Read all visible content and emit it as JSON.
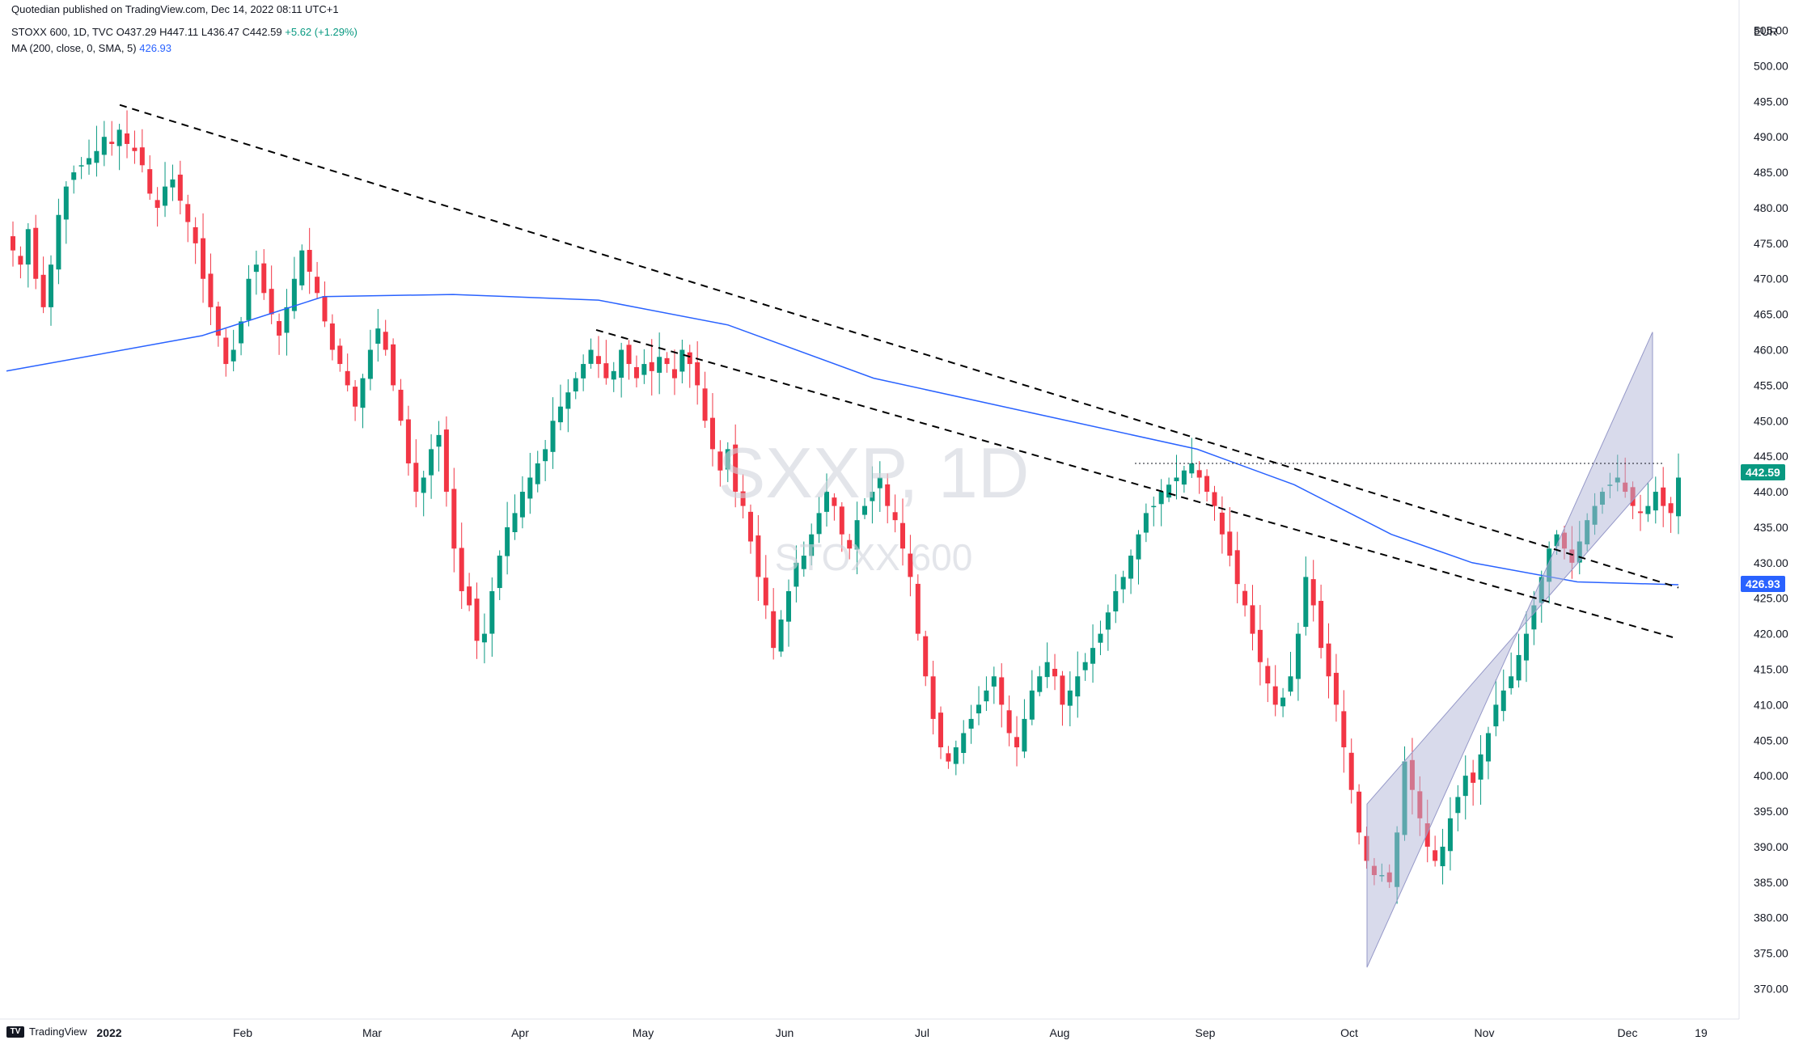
{
  "header": {
    "published": "Quotedian published on TradingView.com, Dec 14, 2022 08:11 UTC+1",
    "ohlc_prefix": "STOXX 600, 1D, TVC",
    "ohlc_values": "O437.29 H447.11 L436.47 C442.59",
    "change": "+5.62 (+1.29%)",
    "indicator": "MA (200, close, 0, SMA, 5)",
    "indicator_value": "426.93"
  },
  "watermark": {
    "symbol": "SXXP, 1D",
    "name": "STOXX 600"
  },
  "footer": {
    "logo_text": "TradingView"
  },
  "colors": {
    "up": "#089981",
    "down": "#f23645",
    "ma": "#2962ff",
    "channel": "#b2b5d8",
    "current_label": "#089981",
    "ma_label": "#2962ff"
  },
  "chart_data": {
    "type": "candlestick",
    "currency": "EUR",
    "y_ticks": [
      370,
      375,
      380,
      385,
      390,
      395,
      400,
      405,
      410,
      415,
      420,
      425,
      430,
      435,
      440,
      445,
      450,
      455,
      460,
      465,
      470,
      475,
      480,
      485,
      490,
      495,
      500,
      505
    ],
    "ylim": [
      368,
      507
    ],
    "x_ticks": [
      "2022",
      "Feb",
      "Mar",
      "Apr",
      "May",
      "Jun",
      "Jul",
      "Aug",
      "Sep",
      "Oct",
      "Nov",
      "Dec",
      "19"
    ],
    "last_close": "442.59",
    "ma_last": "426.93",
    "close_series": [
      474,
      472,
      477,
      470,
      466,
      472,
      479,
      483,
      485,
      486,
      487,
      488,
      490,
      489,
      491,
      489,
      488,
      486,
      482,
      480,
      483,
      484,
      481,
      478,
      475,
      470,
      466,
      462,
      458,
      460,
      464,
      470,
      472,
      468,
      465,
      462,
      466,
      470,
      474,
      471,
      468,
      464,
      460,
      458,
      455,
      452,
      456,
      460,
      463,
      460,
      455,
      450,
      444,
      440,
      442,
      446,
      448,
      440,
      432,
      426,
      424,
      419,
      420,
      426,
      431,
      435,
      437,
      440,
      442,
      444,
      446,
      450,
      452,
      454,
      456,
      458,
      460,
      458,
      456,
      457,
      460,
      458,
      456,
      458,
      457,
      459,
      458,
      456,
      460,
      458,
      455,
      450,
      446,
      443,
      446,
      440,
      438,
      433,
      428,
      424,
      418,
      422,
      426,
      430,
      431,
      434,
      437,
      440,
      438,
      434,
      432,
      436,
      438,
      440,
      442,
      438,
      436,
      432,
      428,
      420,
      414,
      408,
      404,
      402,
      404,
      406,
      408,
      410,
      412,
      414,
      410,
      406,
      404,
      408,
      412,
      414,
      416,
      414,
      410,
      412,
      414,
      416,
      418,
      420,
      423,
      426,
      428,
      431,
      434,
      437,
      438,
      440,
      441,
      442,
      443,
      444,
      442,
      440,
      438,
      434,
      431,
      427,
      424,
      420,
      416,
      413,
      410,
      411,
      414,
      420,
      428,
      424,
      418,
      414,
      410,
      404,
      398,
      392,
      388,
      386,
      386,
      385,
      392,
      402,
      398,
      394,
      390,
      388,
      390,
      394,
      397,
      400,
      399,
      403,
      406,
      410,
      412,
      414,
      417,
      420,
      424,
      428,
      432,
      434,
      432,
      430,
      433,
      436,
      438,
      440,
      441,
      442,
      440,
      438,
      437,
      438,
      440,
      438,
      437,
      442
    ]
  }
}
